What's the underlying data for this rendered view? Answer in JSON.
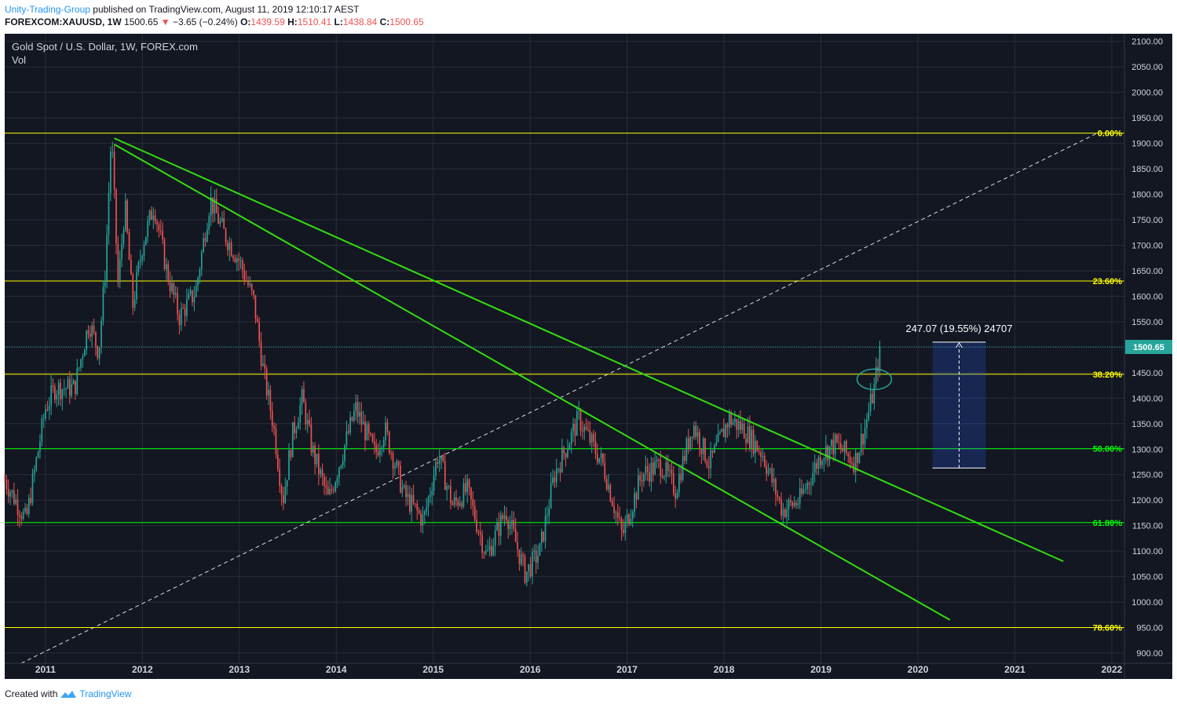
{
  "header": {
    "author": "Unity-Trading-Group",
    "published_text": " published on TradingView.com, August 11, 2019 12:10:17 AEST",
    "symbol": "FOREXCOM:XAUUSD, 1W",
    "last_price": "1500.65",
    "change": "−3.65 (−0.24%)",
    "open_label": "O:",
    "open": "1439.59",
    "high_label": "H:",
    "high": "1510.41",
    "low_label": "L:",
    "low": "1438.84",
    "close_label": "C:",
    "close": "1500.65"
  },
  "legend": {
    "title": "Gold Spot / U.S. Dollar, 1W, FOREX.com",
    "vol_label": "Vol"
  },
  "footer": {
    "created_with": "Created with",
    "brand": "TradingView"
  },
  "colors": {
    "background": "#131722",
    "grid": "#2a2e39",
    "up_candle": "#26a69a",
    "down_candle": "#ef5350",
    "fib_yellow": "#ffff00",
    "fib_green": "#00ff00",
    "trendline": "#33dd11",
    "price_tag": "#26a69a"
  },
  "chart_data": {
    "type": "candlestick",
    "title": "Gold Spot / U.S. Dollar, 1W, FOREX.com",
    "x_range": [
      2010.58,
      2022.13
    ],
    "y_range": [
      880,
      2115
    ],
    "x_ticks": [
      "2011",
      "2012",
      "2013",
      "2014",
      "2015",
      "2016",
      "2017",
      "2018",
      "2019",
      "2020",
      "2021",
      "2022"
    ],
    "y_ticks": [
      900,
      950,
      1000,
      1050,
      1100,
      1150,
      1200,
      1250,
      1300,
      1350,
      1400,
      1450,
      1500,
      1550,
      1600,
      1650,
      1700,
      1750,
      1800,
      1850,
      1900,
      1950,
      2000,
      2050,
      2100
    ],
    "price_key_points": [
      [
        2010.58,
        1240
      ],
      [
        2010.8,
        1160
      ],
      [
        2011.0,
        1380
      ],
      [
        2011.1,
        1420
      ],
      [
        2011.3,
        1420
      ],
      [
        2011.45,
        1550
      ],
      [
        2011.55,
        1490
      ],
      [
        2011.62,
        1660
      ],
      [
        2011.68,
        1920
      ],
      [
        2011.75,
        1620
      ],
      [
        2011.82,
        1780
      ],
      [
        2011.9,
        1580
      ],
      [
        2012.0,
        1700
      ],
      [
        2012.12,
        1780
      ],
      [
        2012.25,
        1650
      ],
      [
        2012.38,
        1560
      ],
      [
        2012.55,
        1610
      ],
      [
        2012.7,
        1790
      ],
      [
        2012.85,
        1720
      ],
      [
        2013.0,
        1670
      ],
      [
        2013.15,
        1590
      ],
      [
        2013.25,
        1450
      ],
      [
        2013.35,
        1350
      ],
      [
        2013.45,
        1200
      ],
      [
        2013.55,
        1330
      ],
      [
        2013.65,
        1400
      ],
      [
        2013.75,
        1300
      ],
      [
        2013.92,
        1200
      ],
      [
        2014.2,
        1380
      ],
      [
        2014.4,
        1290
      ],
      [
        2014.5,
        1340
      ],
      [
        2014.7,
        1210
      ],
      [
        2014.9,
        1160
      ],
      [
        2015.05,
        1290
      ],
      [
        2015.2,
        1190
      ],
      [
        2015.35,
        1220
      ],
      [
        2015.55,
        1090
      ],
      [
        2015.75,
        1180
      ],
      [
        2015.95,
        1055
      ],
      [
        2016.1,
        1100
      ],
      [
        2016.25,
        1250
      ],
      [
        2016.5,
        1360
      ],
      [
        2016.75,
        1270
      ],
      [
        2016.95,
        1130
      ],
      [
        2017.15,
        1250
      ],
      [
        2017.35,
        1270
      ],
      [
        2017.5,
        1220
      ],
      [
        2017.68,
        1350
      ],
      [
        2017.85,
        1270
      ],
      [
        2018.05,
        1360
      ],
      [
        2018.2,
        1340
      ],
      [
        2018.4,
        1290
      ],
      [
        2018.6,
        1180
      ],
      [
        2018.78,
        1200
      ],
      [
        2019.0,
        1290
      ],
      [
        2019.15,
        1310
      ],
      [
        2019.35,
        1275
      ],
      [
        2019.45,
        1340
      ],
      [
        2019.55,
        1420
      ],
      [
        2019.61,
        1500
      ]
    ],
    "fibonacci": [
      {
        "label": "0.00%",
        "price": 1920,
        "color": "#ffff00"
      },
      {
        "label": "23.60%",
        "price": 1630,
        "color": "#ffff00"
      },
      {
        "label": "38.20%",
        "price": 1447,
        "color": "#ffff00"
      },
      {
        "label": "50.00%",
        "price": 1301,
        "color": "#00ff00"
      },
      {
        "label": "61.80%",
        "price": 1156,
        "color": "#00ff00"
      },
      {
        "label": "78.60%",
        "price": 950,
        "color": "#ffff00"
      }
    ],
    "trendlines": [
      {
        "from": [
          2011.71,
          1910
        ],
        "to": [
          2021.5,
          1080
        ],
        "color": "#33dd11"
      },
      {
        "from": [
          2011.71,
          1898
        ],
        "to": [
          2020.33,
          965
        ],
        "color": "#33dd11"
      }
    ],
    "dashed_line": {
      "from": [
        2010.75,
        880
      ],
      "to": [
        2021.85,
        1920
      ],
      "color": "#ffffff"
    },
    "current_price": {
      "value": 1500.65,
      "label": "1500.65"
    },
    "measure": {
      "label": "247.07 (19.55%) 24707",
      "x_range": [
        2020.15,
        2020.7
      ],
      "price_range": [
        1263,
        1510
      ]
    },
    "ellipse_marker": {
      "x": 2019.55,
      "price": 1437
    }
  }
}
